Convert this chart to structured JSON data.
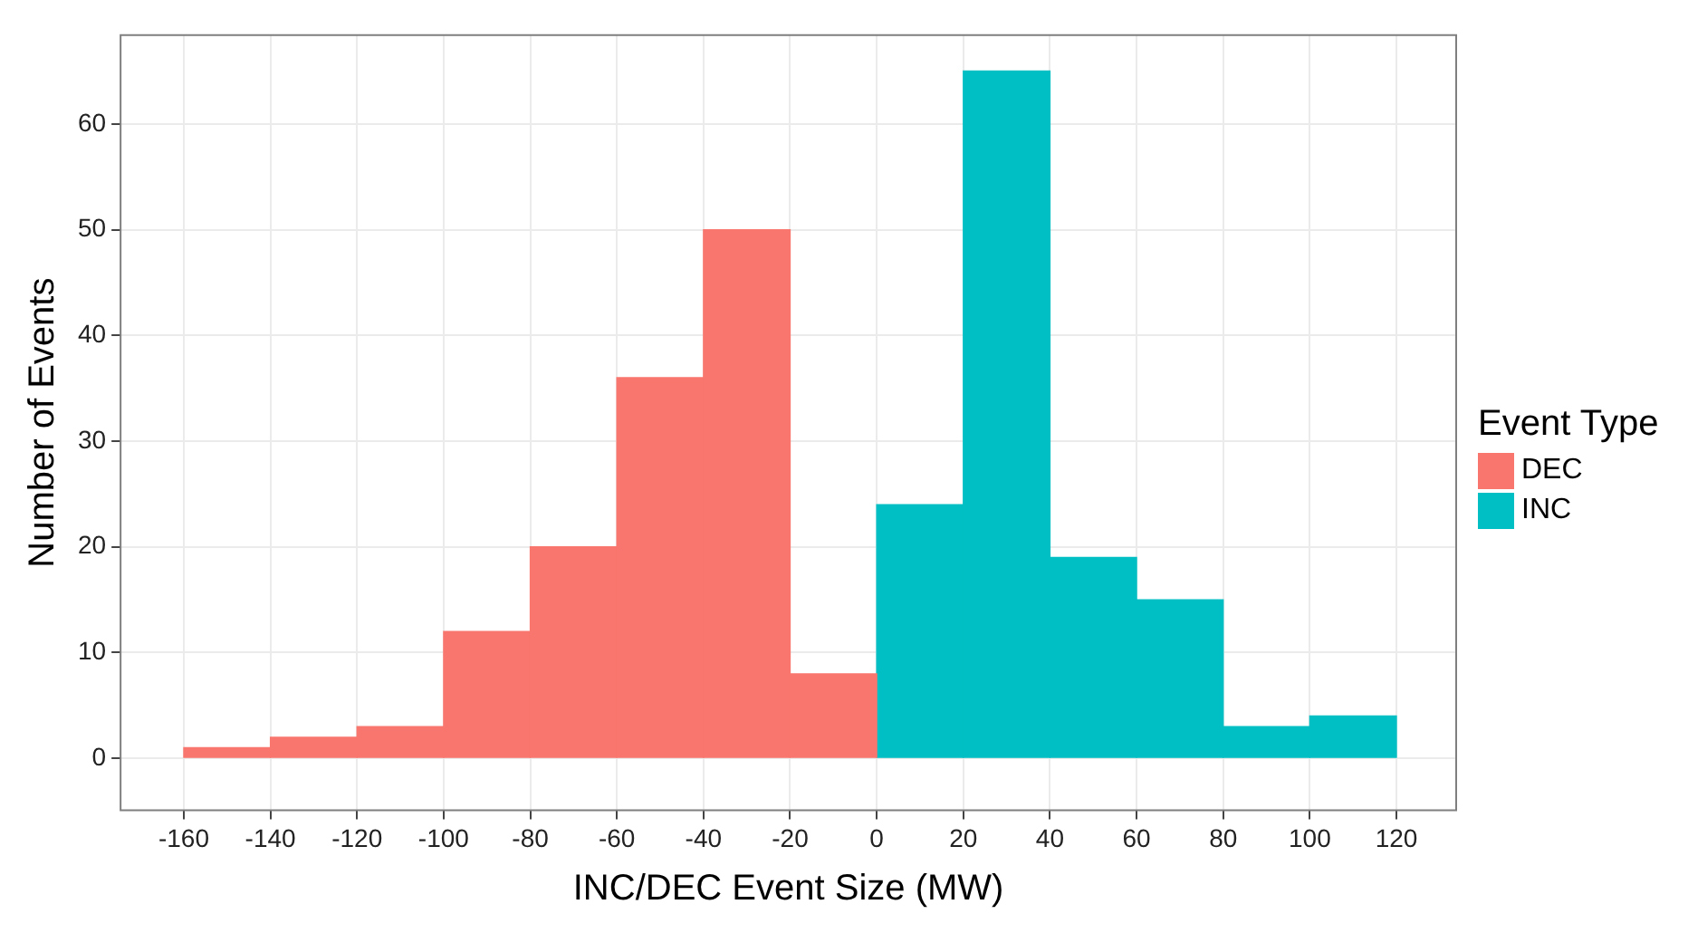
{
  "chart_data": {
    "type": "histogram",
    "xlabel": "INC/DEC Event Size (MW)",
    "ylabel": "Number of Events",
    "legend_title": "Event Type",
    "legend": "right",
    "bins": [
      -160,
      -140,
      -120,
      -100,
      -80,
      -60,
      -40,
      -20,
      0,
      20,
      40,
      60,
      80,
      100,
      120
    ],
    "series": [
      {
        "name": "DEC",
        "color": "#f8766d",
        "values": [
          1,
          2,
          3,
          12,
          20,
          36,
          50,
          8,
          null,
          null,
          null,
          null,
          null,
          null
        ]
      },
      {
        "name": "INC",
        "color": "#00bfc4",
        "values": [
          null,
          null,
          null,
          null,
          null,
          null,
          null,
          null,
          24,
          65,
          19,
          15,
          3,
          4
        ]
      }
    ],
    "xlim": [
      -174.6,
      133.8
    ],
    "xticks": [
      -160,
      -140,
      -120,
      -100,
      -80,
      -60,
      -40,
      -20,
      0,
      20,
      40,
      60,
      80,
      100,
      120
    ],
    "ylim": [
      -4.9,
      68.4
    ],
    "yticks": [
      0,
      10,
      20,
      30,
      40,
      50,
      60
    ],
    "grid": true
  }
}
